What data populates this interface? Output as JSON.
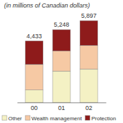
{
  "chart_data": {
    "type": "bar",
    "title": "(in millions of Canadian dollars)",
    "stacked": true,
    "tick_labels": "x",
    "legend": "bottom",
    "categories": [
      "00",
      "01",
      "02"
    ],
    "series": [
      {
        "name": "Other",
        "color": "#f4f1c4",
        "values": [
          900,
          2260,
          2410
        ]
      },
      {
        "name": "Wealth management",
        "color": "#f6c9a4",
        "values": [
          1850,
          1450,
          1700
        ]
      },
      {
        "name": "Protection",
        "color": "#8e1b1b",
        "values": [
          1683,
          1538,
          1787
        ]
      }
    ],
    "totals": [
      4433,
      5248,
      5897
    ],
    "total_labels": [
      "4,433",
      "5,248",
      "5,897"
    ],
    "ylim": [
      0,
      6300
    ]
  }
}
